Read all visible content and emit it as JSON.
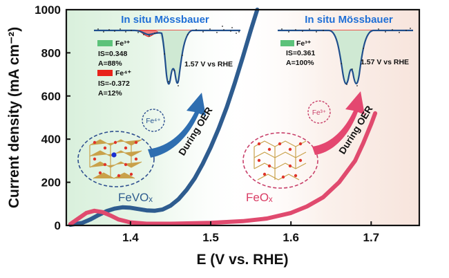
{
  "chart_data": {
    "type": "line",
    "xlabel": "E (V vs. RHE)",
    "ylabel": "Current density (mA cm⁻²)",
    "xlim": [
      1.32,
      1.76
    ],
    "ylim": [
      0,
      1000
    ],
    "x_ticks": [
      "1.4",
      "1.5",
      "1.6",
      "1.7"
    ],
    "y_ticks": [
      "0",
      "200",
      "400",
      "600",
      "800",
      "1000"
    ],
    "grid": false,
    "series": [
      {
        "name": "FeVOₓ",
        "color": "#2e5c8f",
        "points": [
          [
            1.325,
            3
          ],
          [
            1.34,
            12
          ],
          [
            1.35,
            28
          ],
          [
            1.36,
            48
          ],
          [
            1.37,
            66
          ],
          [
            1.38,
            78
          ],
          [
            1.39,
            84
          ],
          [
            1.4,
            82
          ],
          [
            1.41,
            76
          ],
          [
            1.42,
            70
          ],
          [
            1.43,
            68
          ],
          [
            1.44,
            74
          ],
          [
            1.45,
            92
          ],
          [
            1.46,
            122
          ],
          [
            1.47,
            165
          ],
          [
            1.48,
            218
          ],
          [
            1.49,
            285
          ],
          [
            1.5,
            362
          ],
          [
            1.51,
            450
          ],
          [
            1.52,
            548
          ],
          [
            1.53,
            660
          ],
          [
            1.54,
            780
          ],
          [
            1.55,
            905
          ],
          [
            1.558,
            1000
          ]
        ]
      },
      {
        "name": "FeOₓ",
        "color": "#e04a6e",
        "points": [
          [
            1.325,
            6
          ],
          [
            1.335,
            32
          ],
          [
            1.345,
            58
          ],
          [
            1.355,
            68
          ],
          [
            1.365,
            62
          ],
          [
            1.375,
            46
          ],
          [
            1.385,
            28
          ],
          [
            1.4,
            14
          ],
          [
            1.42,
            8
          ],
          [
            1.45,
            8
          ],
          [
            1.5,
            12
          ],
          [
            1.54,
            20
          ],
          [
            1.57,
            32
          ],
          [
            1.6,
            58
          ],
          [
            1.62,
            88
          ],
          [
            1.64,
            130
          ],
          [
            1.66,
            200
          ],
          [
            1.68,
            300
          ],
          [
            1.69,
            380
          ],
          [
            1.7,
            470
          ],
          [
            1.705,
            520
          ]
        ]
      }
    ]
  },
  "labels": {
    "curve_fevox": "FeVOₓ",
    "curve_feox": "FeOₓ",
    "during_oer_left": "During OER",
    "during_oer_right": "During OER",
    "ion_left": "Fe⁴⁺",
    "ion_right": "Fe³⁺"
  },
  "insets": [
    {
      "title": "In situ Mössbauer",
      "potential": "1.57 V vs RHE",
      "legend": [
        {
          "name": "Fe³⁺",
          "color": "#5cc27a",
          "is": "IS=0.348",
          "area": "A=88%"
        },
        {
          "name": "Fe⁴⁺",
          "color": "#e8231b",
          "is": "IS=-0.372",
          "area": "A=12%"
        }
      ]
    },
    {
      "title": "In situ Mössbauer",
      "potential": "1.57 V vs RHE",
      "legend": [
        {
          "name": "Fe³⁺",
          "color": "#5cc27a",
          "is": "IS=0.361",
          "area": "A=100%"
        }
      ]
    }
  ]
}
